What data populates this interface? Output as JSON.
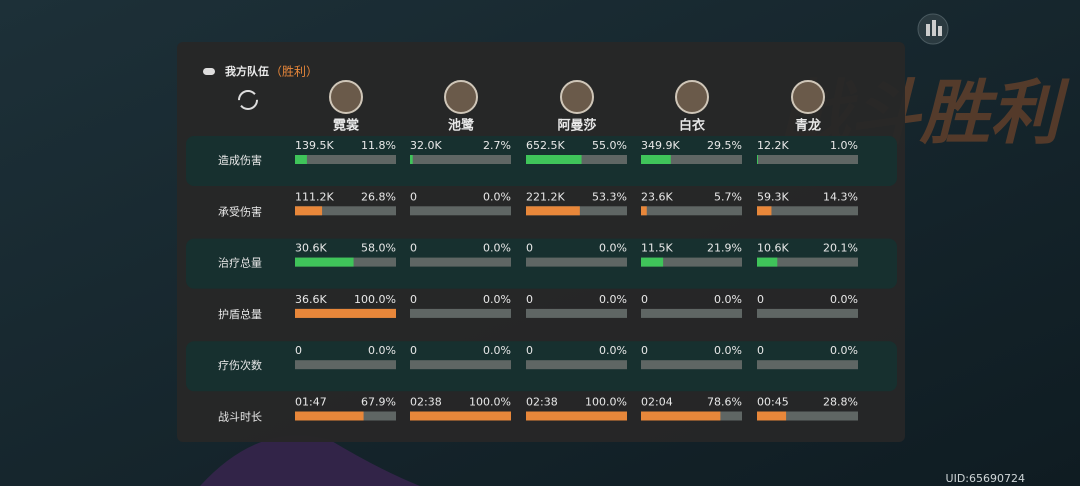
{
  "panel": {
    "title": "我方队伍",
    "status": "（胜利）",
    "watermark": "战斗胜利",
    "heroes": [
      "霓裳",
      "池鹭",
      "阿曼莎",
      "白衣",
      "青龙"
    ],
    "rows": [
      {
        "label": "造成伤害",
        "bar_color": "#3fc45a",
        "cells": [
          {
            "value": "139.5K",
            "percent": 11.8,
            "percent_label": "11.8%"
          },
          {
            "value": "32.0K",
            "percent": 2.7,
            "percent_label": "2.7%"
          },
          {
            "value": "652.5K",
            "percent": 55.0,
            "percent_label": "55.0%"
          },
          {
            "value": "349.9K",
            "percent": 29.5,
            "percent_label": "29.5%"
          },
          {
            "value": "12.2K",
            "percent": 1.0,
            "percent_label": "1.0%"
          }
        ]
      },
      {
        "label": "承受伤害",
        "bar_color": "#e8873a",
        "cells": [
          {
            "value": "111.2K",
            "percent": 26.8,
            "percent_label": "26.8%"
          },
          {
            "value": "0",
            "percent": 0,
            "percent_label": "0.0%"
          },
          {
            "value": "221.2K",
            "percent": 53.3,
            "percent_label": "53.3%"
          },
          {
            "value": "23.6K",
            "percent": 5.7,
            "percent_label": "5.7%"
          },
          {
            "value": "59.3K",
            "percent": 14.3,
            "percent_label": "14.3%"
          }
        ]
      },
      {
        "label": "治疗总量",
        "bar_color": "#3fc45a",
        "cells": [
          {
            "value": "30.6K",
            "percent": 58.0,
            "percent_label": "58.0%"
          },
          {
            "value": "0",
            "percent": 0,
            "percent_label": "0.0%"
          },
          {
            "value": "0",
            "percent": 0,
            "percent_label": "0.0%"
          },
          {
            "value": "11.5K",
            "percent": 21.9,
            "percent_label": "21.9%"
          },
          {
            "value": "10.6K",
            "percent": 20.1,
            "percent_label": "20.1%"
          }
        ]
      },
      {
        "label": "护盾总量",
        "bar_color": "#e8873a",
        "cells": [
          {
            "value": "36.6K",
            "percent": 100.0,
            "percent_label": "100.0%"
          },
          {
            "value": "0",
            "percent": 0,
            "percent_label": "0.0%"
          },
          {
            "value": "0",
            "percent": 0,
            "percent_label": "0.0%"
          },
          {
            "value": "0",
            "percent": 0,
            "percent_label": "0.0%"
          },
          {
            "value": "0",
            "percent": 0,
            "percent_label": "0.0%"
          }
        ]
      },
      {
        "label": "疗伤次数",
        "bar_color": "#3fc45a",
        "cells": [
          {
            "value": "0",
            "percent": 0,
            "percent_label": "0.0%"
          },
          {
            "value": "0",
            "percent": 0,
            "percent_label": "0.0%"
          },
          {
            "value": "0",
            "percent": 0,
            "percent_label": "0.0%"
          },
          {
            "value": "0",
            "percent": 0,
            "percent_label": "0.0%"
          },
          {
            "value": "0",
            "percent": 0,
            "percent_label": "0.0%"
          }
        ]
      },
      {
        "label": "战斗时长",
        "bar_color": "#e8873a",
        "cells": [
          {
            "value": "01:47",
            "percent": 67.9,
            "percent_label": "67.9%"
          },
          {
            "value": "02:38",
            "percent": 100.0,
            "percent_label": "100.0%"
          },
          {
            "value": "02:38",
            "percent": 100.0,
            "percent_label": "100.0%"
          },
          {
            "value": "02:04",
            "percent": 78.6,
            "percent_label": "78.6%"
          },
          {
            "value": "00:45",
            "percent": 28.8,
            "percent_label": "28.8%"
          }
        ]
      }
    ]
  },
  "footer": {
    "uid": "UID:65690724"
  }
}
